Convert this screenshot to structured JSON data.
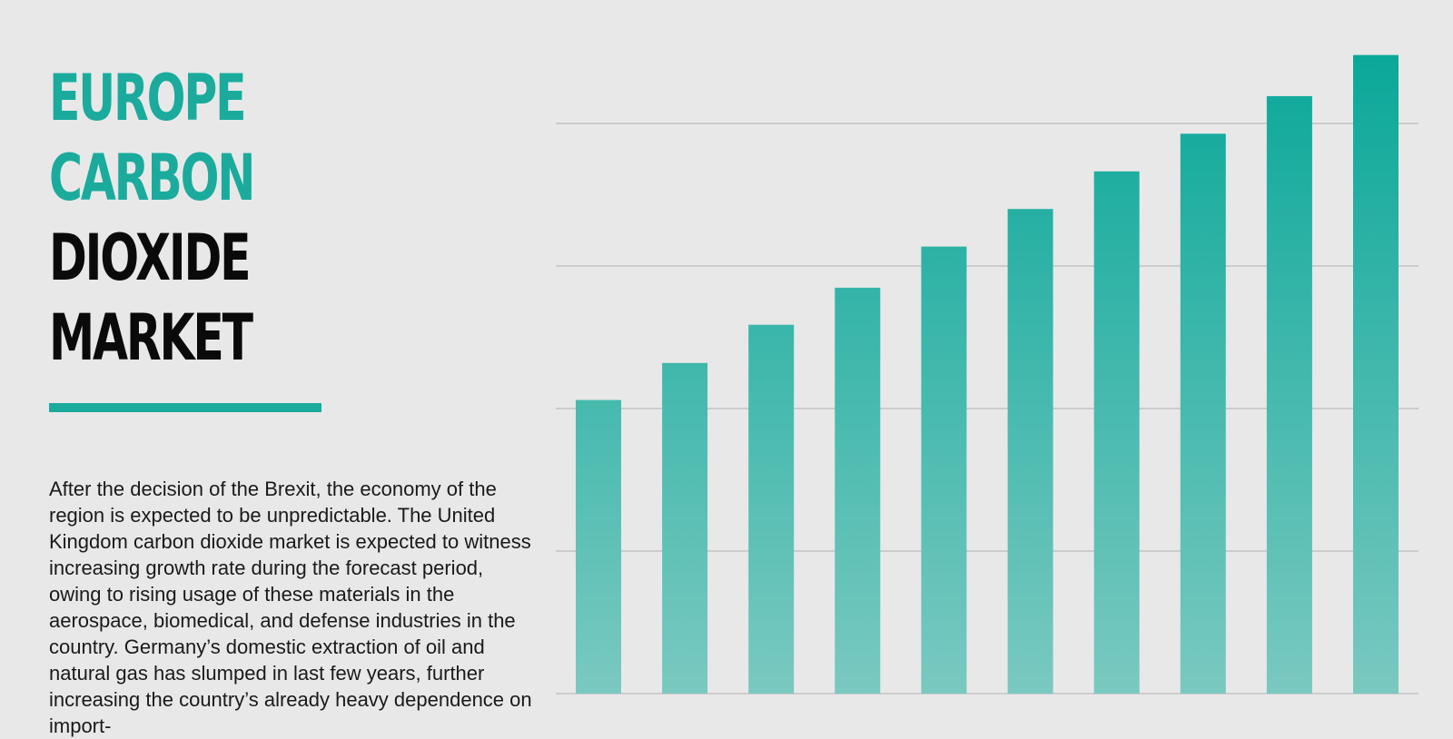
{
  "title": {
    "line1": "EUROPE",
    "line2": "CARBON",
    "line3": "DIOXIDE",
    "line4": "MARKET"
  },
  "body_text": "After the decision of the Brexit, the economy of the region is expected to be unpredictable. The United Kingdom carbon dioxide market is expected to witness increasing growth rate during the forecast period, owing to rising usage of these materials in the aerospace, biomedical, and defense industries in the country. Germany’s domestic extraction of oil and natural gas has slumped in last few years, further increasing the country’s already heavy dependence on import-",
  "colors": {
    "accent": "#1aab9d",
    "bar_top": "#0aa899",
    "bar_bottom": "#7ac9c0",
    "grid": "#cccccc",
    "background": "#e8e8e8"
  },
  "chart_data": {
    "type": "bar",
    "title": "",
    "xlabel": "",
    "ylabel": "",
    "ylim": [
      0,
      100
    ],
    "grid": true,
    "gridlines": [
      0,
      25,
      50,
      75,
      100
    ],
    "values": [
      51.5,
      58.0,
      64.7,
      71.2,
      78.4,
      85.0,
      91.6,
      98.2,
      104.8,
      112.0
    ]
  }
}
